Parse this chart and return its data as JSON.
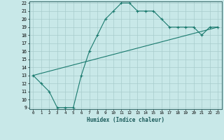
{
  "xlabel": "Humidex (Indice chaleur)",
  "curve1_x": [
    0,
    1,
    2,
    3,
    4,
    5,
    6,
    7,
    8,
    9,
    10,
    11,
    12,
    13,
    14,
    15,
    16,
    17,
    18,
    19,
    20,
    21,
    22,
    23
  ],
  "curve1_y": [
    13,
    12,
    11,
    9,
    9,
    9,
    13,
    16,
    18,
    20,
    21,
    22,
    22,
    21,
    21,
    21,
    20,
    19,
    19,
    19,
    19,
    18,
    19,
    19
  ],
  "curve2_x": [
    0,
    23
  ],
  "curve2_y": [
    13,
    19
  ],
  "line_color": "#1a7a6e",
  "bg_color": "#c8e8e8",
  "grid_color": "#a8cccc",
  "ylim": [
    9,
    22
  ],
  "xlim": [
    -0.5,
    23.5
  ],
  "yticks": [
    9,
    10,
    11,
    12,
    13,
    14,
    15,
    16,
    17,
    18,
    19,
    20,
    21,
    22
  ],
  "xticks": [
    0,
    1,
    2,
    3,
    4,
    5,
    6,
    7,
    8,
    9,
    10,
    11,
    12,
    13,
    14,
    15,
    16,
    17,
    18,
    19,
    20,
    21,
    22,
    23
  ]
}
